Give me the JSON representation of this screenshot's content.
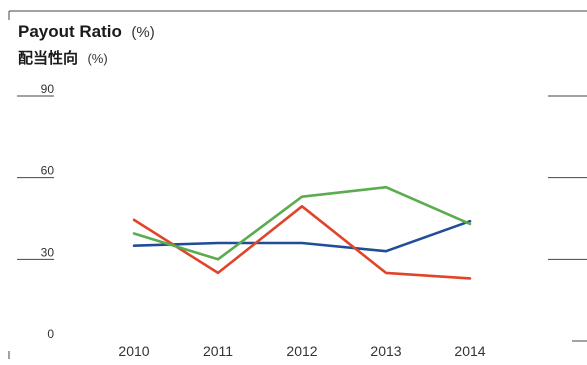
{
  "chart_data": {
    "type": "line",
    "title": "Payout Ratio",
    "title_unit": "(%)",
    "subtitle": "配当性向",
    "subtitle_unit": "(%)",
    "categories": [
      "2010",
      "2011",
      "2012",
      "2013",
      "2014"
    ],
    "ylim": [
      0,
      90
    ],
    "yticks": [
      0,
      30,
      60,
      90
    ],
    "grid": true,
    "legend": "none",
    "series": [
      {
        "color": "#1f4e96",
        "values": [
          35,
          36,
          36,
          33,
          44
        ]
      },
      {
        "color": "#e0452c",
        "values": [
          44.5,
          25,
          49.5,
          25,
          23
        ]
      },
      {
        "color": "#5aac4f",
        "values": [
          39.5,
          30,
          53,
          56.5,
          43
        ]
      }
    ]
  }
}
